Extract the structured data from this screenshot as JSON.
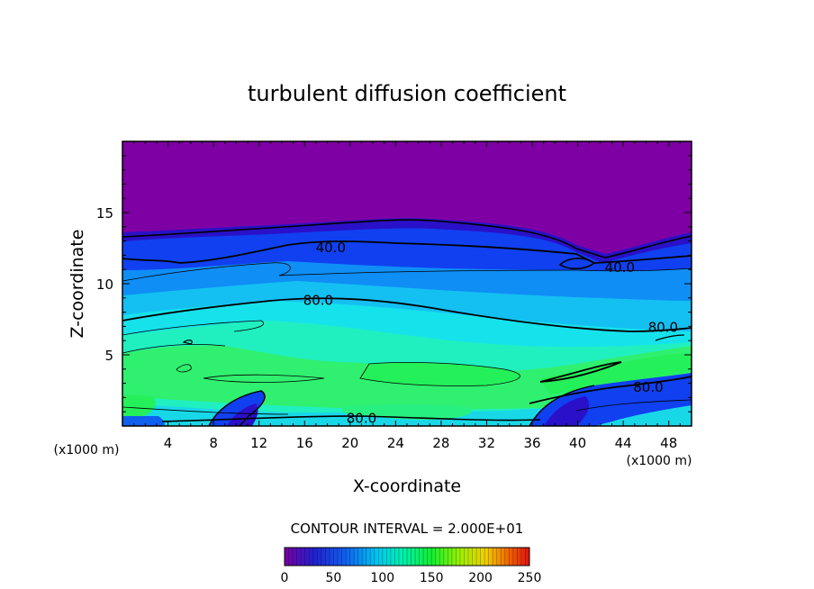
{
  "chart_data": {
    "type": "contour",
    "title": "turbulent diffusion coefficient",
    "xlabel": "X-coordinate",
    "ylabel": "Z-coordinate",
    "x_unit_left": "(x1000 m)",
    "x_unit_right": "(x1000 m)",
    "xlim": [
      0,
      50
    ],
    "ylim": [
      0,
      20
    ],
    "x_ticks": [
      4,
      8,
      12,
      16,
      20,
      24,
      28,
      32,
      36,
      40,
      44,
      48
    ],
    "y_ticks": [
      5,
      10,
      15
    ],
    "contour_interval_text": "CONTOUR INTERVAL = 2.000E+01",
    "contour_interval": 20,
    "contour_labels": [
      {
        "text": "40.0",
        "x": 18.3,
        "y": 12.6
      },
      {
        "text": "40.0",
        "x": 43.7,
        "y": 11.2
      },
      {
        "text": "80.0",
        "x": 17.2,
        "y": 8.9
      },
      {
        "text": "80.0",
        "x": 47.5,
        "y": 7.0
      },
      {
        "text": "80.0",
        "x": 46.2,
        "y": 2.8
      },
      {
        "text": "80.0",
        "x": 21.0,
        "y": 0.6
      }
    ],
    "colorbar": {
      "min": 0,
      "max": 250,
      "tick_labels": [
        "0",
        "50",
        "100",
        "150",
        "200",
        "250"
      ],
      "colors": [
        "#7a00a0",
        "#2020d0",
        "#1060f0",
        "#00c8f0",
        "#00f0b0",
        "#10f030",
        "#a0f000",
        "#f0d000",
        "#f06000",
        "#e01010"
      ]
    },
    "colors": {
      "top_layer": "#7e00a4",
      "blue": "#1040f0",
      "mid_blue": "#0f8ef6",
      "cyan": "#16e2ec",
      "green": "#24f05a"
    }
  }
}
